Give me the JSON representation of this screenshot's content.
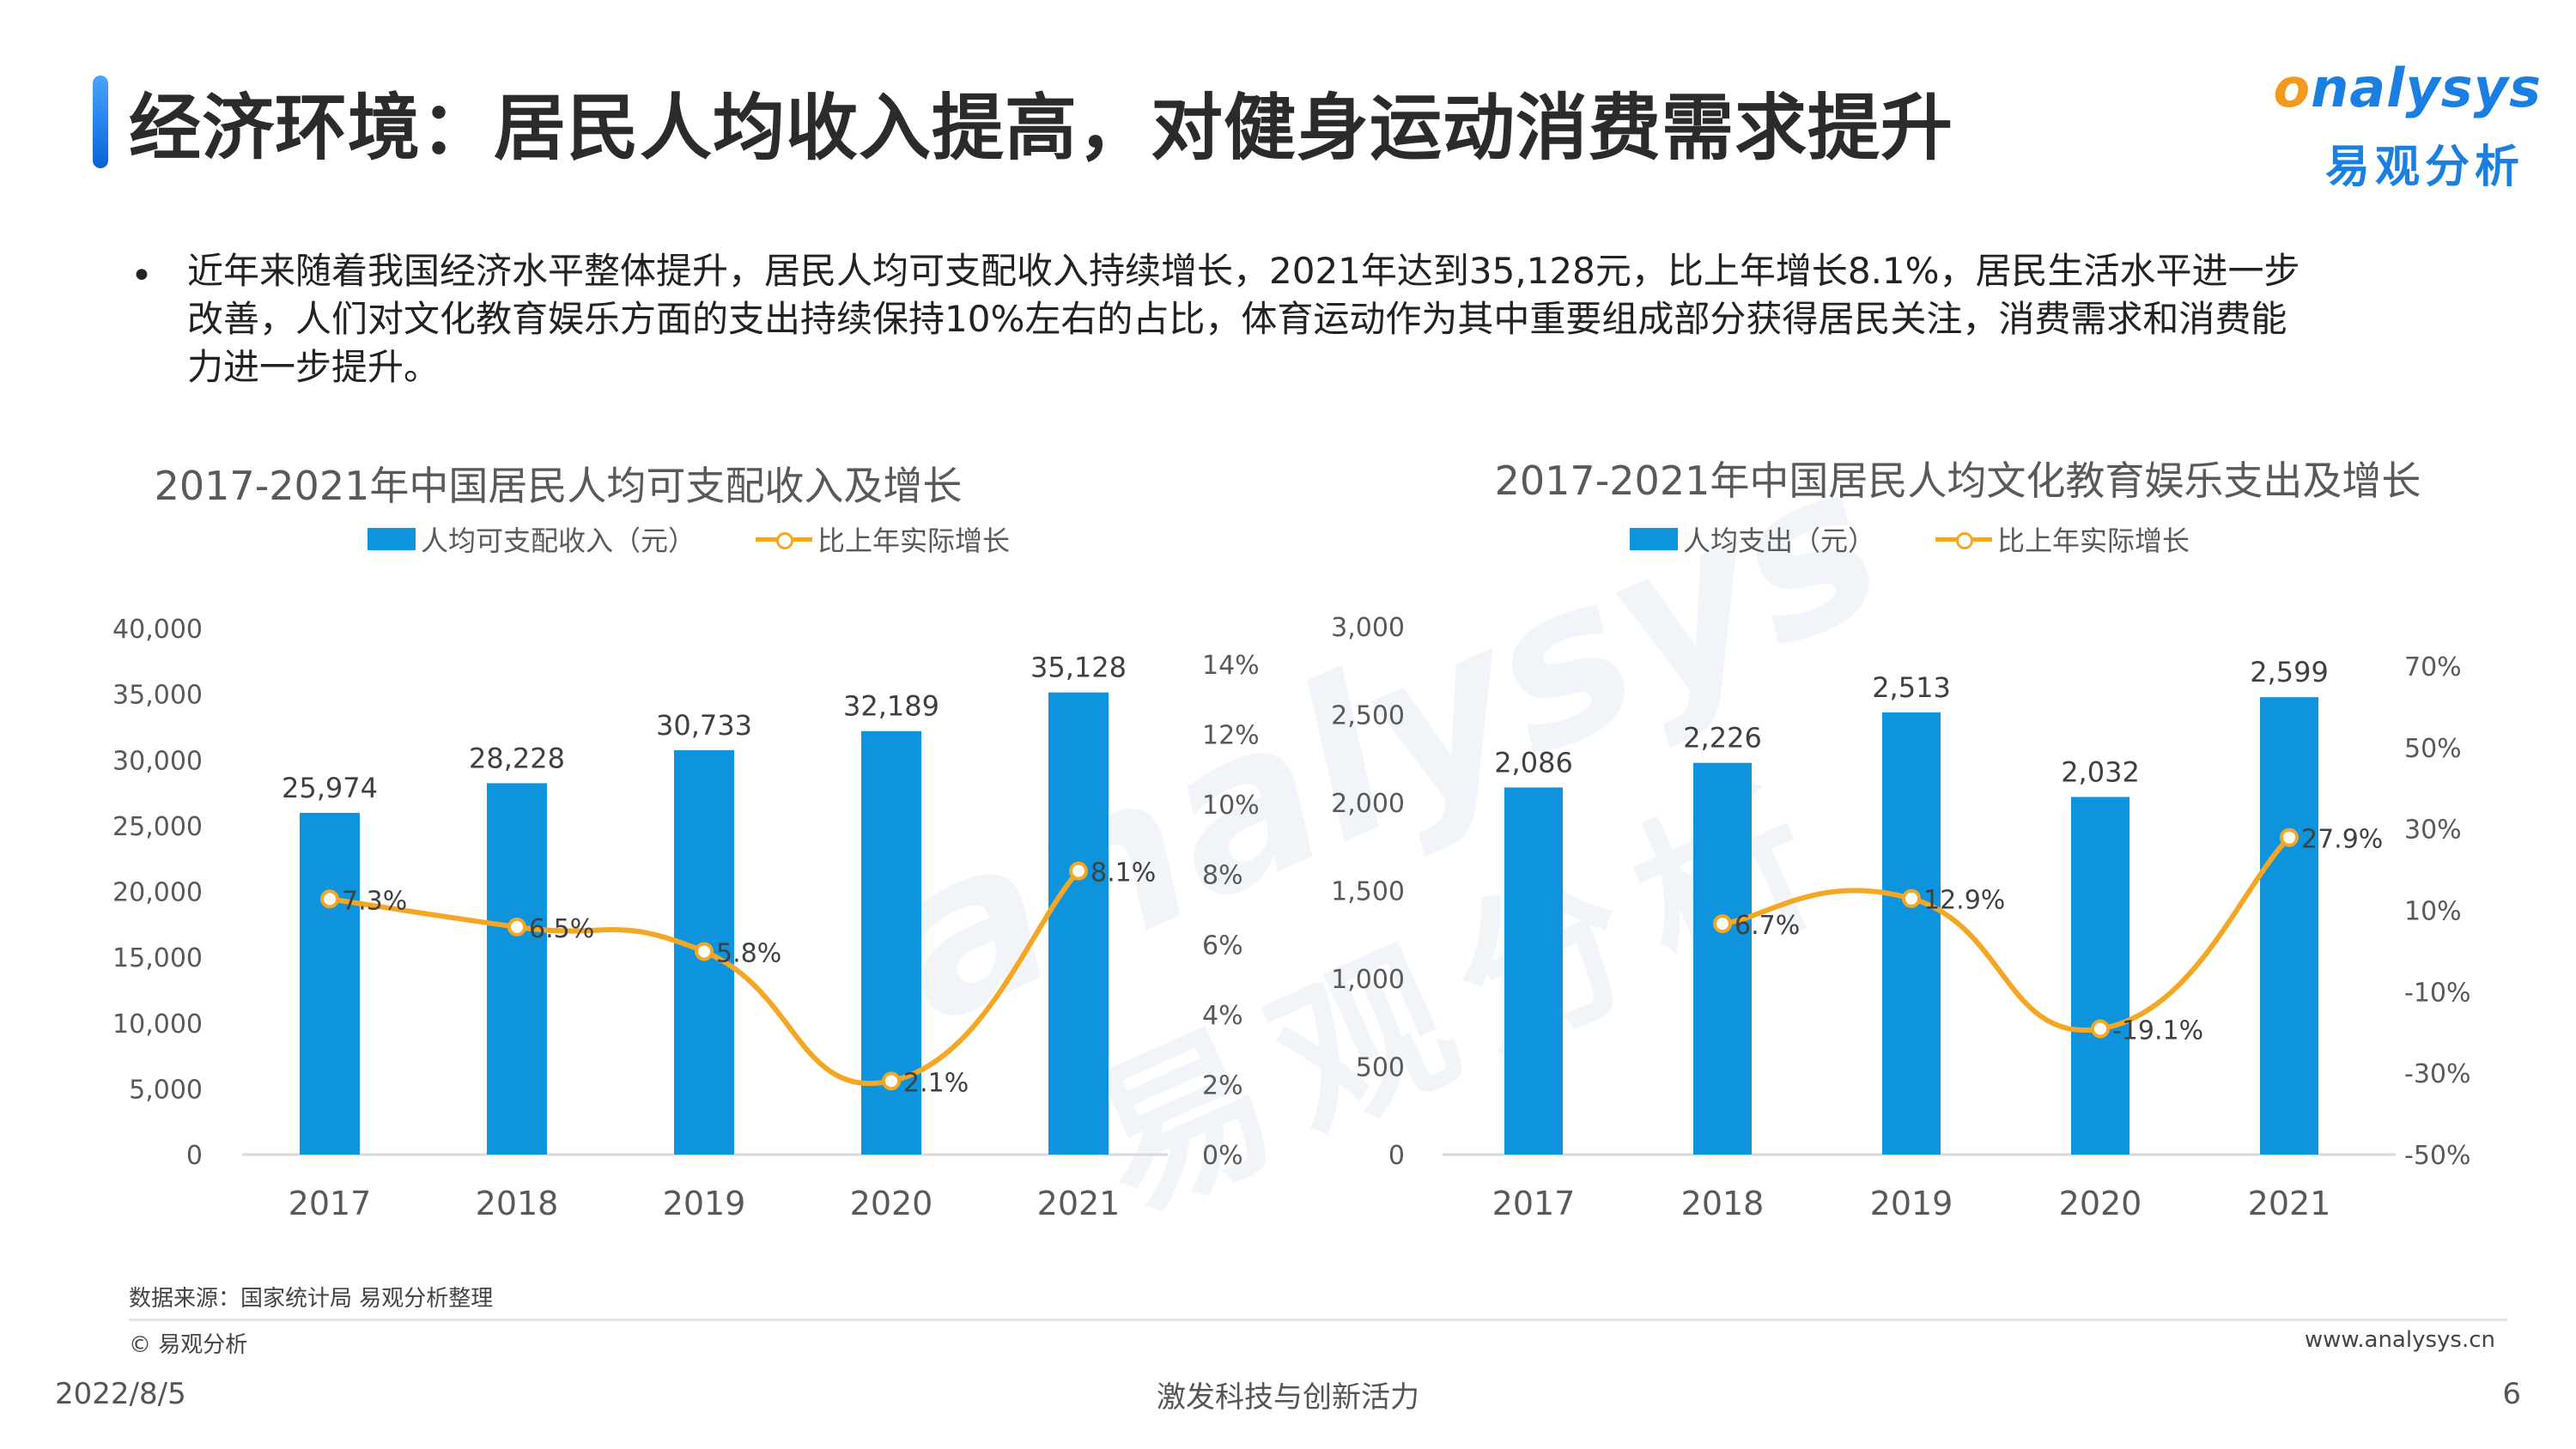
{
  "header": {
    "title": "经济环境：居民人均收入提高，对健身运动消费需求提升",
    "logo_en_o": "o",
    "logo_en_rest": "nalysys",
    "logo_cn": "易观分析"
  },
  "bullet": {
    "dot": "•",
    "lines": [
      "近年来随着我国经济水平整体提升，居民人均可支配收入持续增长，2021年达到35,128元，比上年增长8.1%，居民生活水平进一步",
      "改善，人们对文化教育娱乐方面的支出持续保持10%左右的占比，体育运动作为其中重要组成部分获得居民关注，消费需求和消费能",
      "力进一步提升。"
    ]
  },
  "chart_data": [
    {
      "type": "bar",
      "title": "2017-2021年中国居民人均可支配收入及增长",
      "categories": [
        "2017",
        "2018",
        "2019",
        "2020",
        "2021"
      ],
      "series": [
        {
          "name": "人均可支配收入（元）",
          "type": "bar",
          "axis": "left",
          "values": [
            25974,
            28228,
            30733,
            32189,
            35128
          ],
          "labels": [
            "25,974",
            "28,228",
            "30,733",
            "32,189",
            "35,128"
          ],
          "color": "#0e94dd"
        },
        {
          "name": "比上年实际增长",
          "type": "line",
          "axis": "right",
          "values": [
            7.3,
            6.5,
            5.8,
            2.1,
            8.1
          ],
          "labels": [
            "7.3%",
            "6.5%",
            "5.8%",
            "2.1%",
            "8.1%"
          ],
          "color": "#f5a623"
        }
      ],
      "ylim_left": [
        0,
        40000
      ],
      "yticks_left": [
        "0",
        "5,000",
        "10,000",
        "15,000",
        "20,000",
        "25,000",
        "30,000",
        "35,000",
        "40,000"
      ],
      "ylim_right": [
        0,
        14
      ],
      "yticks_right": [
        "0%",
        "2%",
        "4%",
        "6%",
        "8%",
        "10%",
        "12%",
        "14%"
      ],
      "grid": false,
      "legend": "top"
    },
    {
      "type": "bar",
      "title": "2017-2021年中国居民人均文化教育娱乐支出及增长",
      "categories": [
        "2017",
        "2018",
        "2019",
        "2020",
        "2021"
      ],
      "series": [
        {
          "name": "人均支出（元）",
          "type": "bar",
          "axis": "left",
          "values": [
            2086,
            2226,
            2513,
            2032,
            2599
          ],
          "labels": [
            "2,086",
            "2,226",
            "2,513",
            "2,032",
            "2,599"
          ],
          "color": "#0e94dd"
        },
        {
          "name": "比上年实际增长",
          "type": "line",
          "axis": "right",
          "values": [
            null,
            6.7,
            12.9,
            -19.1,
            27.9
          ],
          "labels": [
            "",
            "6.7%",
            "12.9%",
            "-19.1%",
            "27.9%"
          ],
          "color": "#f5a623"
        }
      ],
      "ylim_left": [
        0,
        3000
      ],
      "yticks_left": [
        "0",
        "500",
        "1,000",
        "1,500",
        "2,000",
        "2,500",
        "3,000"
      ],
      "ylim_right": [
        -50,
        70
      ],
      "yticks_right": [
        "-50%",
        "-30%",
        "-10%",
        "10%",
        "30%",
        "50%",
        "70%"
      ],
      "grid": false,
      "legend": "top"
    }
  ],
  "source": "数据来源：国家统计局 易观分析整理",
  "copyright": "© 易观分析",
  "website": "www.analysys.cn",
  "footer": {
    "date": "2022/8/5",
    "slogan": "激发科技与创新活力",
    "page": "6"
  },
  "watermark": {
    "en": "analysys",
    "cn": "易观分析"
  }
}
